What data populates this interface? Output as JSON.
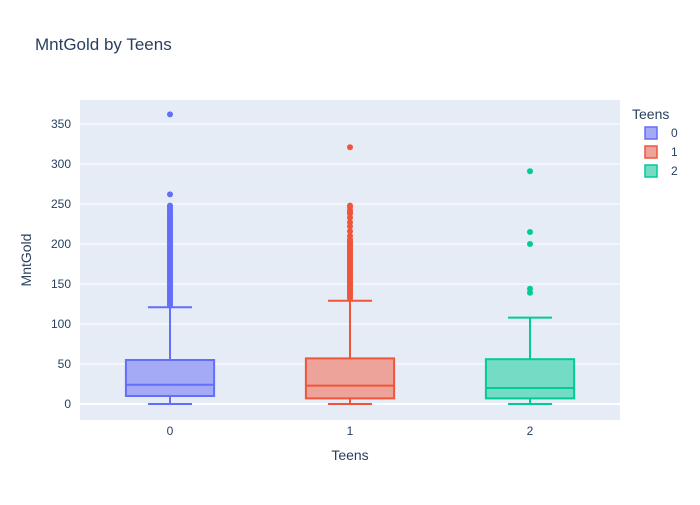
{
  "chart_data": {
    "type": "box",
    "title": "MntGold by Teens",
    "xlabel": "Teens",
    "ylabel": "MntGold",
    "categories": [
      "0",
      "1",
      "2"
    ],
    "ylim": [
      -20,
      380
    ],
    "yticks": [
      0,
      50,
      100,
      150,
      200,
      250,
      300,
      350
    ],
    "grid": true,
    "legend": {
      "title": "Teens",
      "placement": "top-right",
      "entries": [
        "0",
        "1",
        "2"
      ]
    },
    "series": [
      {
        "name": "0",
        "category": "0",
        "color": "#636efa",
        "fill": "#a4aaf5",
        "min": 0,
        "q1": 10,
        "median": 24,
        "q3": 55,
        "upper_fence": 121,
        "outliers": [
          123,
          125,
          127,
          129,
          131,
          133,
          135,
          137,
          139,
          141,
          143,
          145,
          147,
          149,
          151,
          153,
          155,
          157,
          159,
          161,
          163,
          165,
          167,
          169,
          171,
          173,
          175,
          177,
          179,
          181,
          183,
          185,
          187,
          189,
          191,
          193,
          195,
          197,
          199,
          201,
          203,
          205,
          207,
          209,
          211,
          213,
          215,
          217,
          219,
          221,
          223,
          225,
          227,
          229,
          231,
          233,
          235,
          237,
          240,
          242,
          244,
          246,
          248,
          262,
          362
        ]
      },
      {
        "name": "1",
        "category": "1",
        "color": "#ef553b",
        "fill": "#eda39a",
        "min": 0,
        "q1": 7,
        "median": 23,
        "q3": 57,
        "upper_fence": 129,
        "outliers": [
          132,
          134,
          136,
          138,
          140,
          142,
          144,
          146,
          148,
          150,
          152,
          154,
          156,
          158,
          160,
          162,
          164,
          166,
          168,
          170,
          172,
          174,
          176,
          178,
          180,
          182,
          184,
          186,
          188,
          190,
          192,
          194,
          196,
          198,
          200,
          202,
          204,
          206,
          210,
          216,
          222,
          227,
          233,
          238,
          240,
          242,
          246,
          248,
          321
        ]
      },
      {
        "name": "2",
        "category": "2",
        "color": "#00cc96",
        "fill": "#74dcc4",
        "min": 0,
        "q1": 7,
        "median": 20,
        "q3": 56,
        "upper_fence": 108,
        "outliers": [
          139,
          144,
          200,
          215,
          291
        ]
      }
    ]
  }
}
